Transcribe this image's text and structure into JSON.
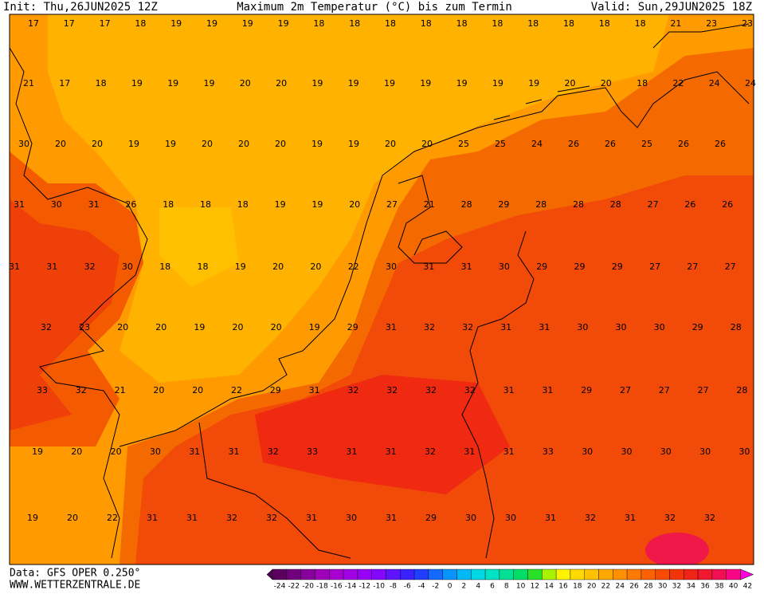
{
  "header": {
    "init": "Init: Thu,26JUN2025 12Z",
    "title": "Maximum 2m Temperatur (°C) bis zum Termin",
    "valid": "Valid: Sun,29JUN2025 18Z"
  },
  "map": {
    "values": [
      [
        17,
        17,
        17,
        18,
        19,
        19,
        19,
        19,
        18,
        18,
        18,
        18,
        18,
        18,
        18,
        18,
        18,
        18,
        21,
        23,
        23
      ],
      [
        21,
        17,
        18,
        19,
        19,
        19,
        20,
        20,
        19,
        19,
        19,
        19,
        19,
        19,
        19,
        20,
        20,
        18,
        22,
        24,
        24
      ],
      [
        30,
        20,
        20,
        19,
        19,
        20,
        20,
        20,
        19,
        19,
        20,
        20,
        25,
        25,
        24,
        26,
        26,
        25,
        26,
        26
      ],
      [
        31,
        30,
        31,
        26,
        18,
        18,
        18,
        19,
        19,
        20,
        27,
        21,
        28,
        29,
        28,
        28,
        28,
        27,
        26,
        26
      ],
      [
        31,
        31,
        32,
        30,
        18,
        18,
        19,
        20,
        20,
        22,
        30,
        31,
        31,
        30,
        29,
        29,
        29,
        27,
        27,
        27
      ],
      [
        32,
        23,
        20,
        20,
        19,
        20,
        20,
        19,
        29,
        31,
        32,
        32,
        31,
        31,
        30,
        30,
        30,
        29,
        28
      ],
      [
        33,
        32,
        21,
        20,
        20,
        22,
        29,
        31,
        32,
        32,
        32,
        32,
        31,
        31,
        29,
        27,
        27,
        27,
        28
      ],
      [
        19,
        20,
        20,
        30,
        31,
        31,
        32,
        33,
        31,
        31,
        32,
        31,
        31,
        33,
        30,
        30,
        30,
        30,
        30
      ],
      [
        19,
        20,
        22,
        31,
        31,
        32,
        32,
        31,
        30,
        31,
        29,
        30,
        30,
        31,
        32,
        31,
        32,
        32
      ]
    ]
  },
  "colorbar": {
    "labels": [
      "-24",
      "-22",
      "-20",
      "-18",
      "-16",
      "-14",
      "-12",
      "-10",
      "-8",
      "-6",
      "-4",
      "-2",
      "0",
      "2",
      "4",
      "6",
      "8",
      "10",
      "12",
      "14",
      "16",
      "18",
      "20",
      "22",
      "24",
      "26",
      "28",
      "30",
      "32",
      "34",
      "36",
      "38",
      "40",
      "42"
    ]
  },
  "footer": {
    "data": "Data: GFS OPER 0.250°",
    "site": "WWW.WETTERZENTRALE.DE"
  }
}
